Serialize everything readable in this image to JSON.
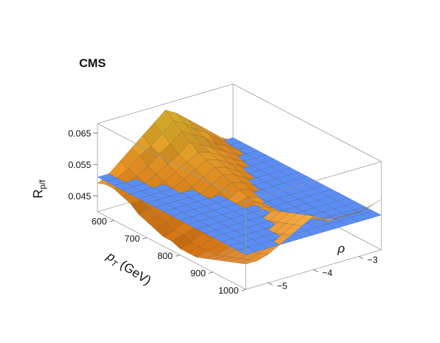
{
  "chart_data": {
    "type": "surface3d",
    "experiment_label": "CMS",
    "x_axis": {
      "title_main": "p",
      "title_sub": "T",
      "title_rest": " (GeV)",
      "range": [
        550,
        1000
      ],
      "ticks": [
        "600",
        "700",
        "800",
        "900",
        "1000"
      ],
      "tick_values": [
        600,
        700,
        800,
        900,
        1000
      ]
    },
    "y_axis": {
      "title": "ρ",
      "range": [
        -5.5,
        -2.5
      ],
      "ticks": [
        "−5",
        "−4",
        "−3"
      ],
      "tick_values": [
        -5,
        -4,
        -3
      ]
    },
    "z_axis": {
      "title_main": "R",
      "title_sub": "p/f",
      "range": [
        0.04,
        0.068
      ],
      "ticks": [
        "0.045",
        "0.055",
        "0.065"
      ],
      "tick_values": [
        0.045,
        0.055,
        0.065
      ]
    },
    "surfaces": [
      {
        "kind": "fitted-function",
        "color_low": "#cc6a10",
        "color_mid": "#f29a26",
        "color_high": "#ffe23a",
        "x_grid": [
          550,
          575,
          600,
          625,
          650,
          675,
          700,
          725,
          750,
          775,
          800,
          825,
          850,
          875,
          900,
          925,
          950,
          975,
          1000
        ],
        "y_grid": [
          -5.5,
          -5.25,
          -5.0,
          -4.75,
          -4.5,
          -4.25,
          -4.0,
          -3.75,
          -3.5,
          -3.25,
          -3.0,
          -2.75,
          -2.5
        ],
        "z_values": [
          [
            0.049,
            0.051,
            0.054,
            0.057,
            0.06,
            0.063,
            0.066,
            0.064,
            0.061,
            0.058,
            0.055,
            0.052,
            0.05
          ],
          [
            0.05,
            0.051,
            0.053,
            0.056,
            0.058,
            0.061,
            0.064,
            0.062,
            0.059,
            0.057,
            0.054,
            0.051,
            0.05
          ],
          [
            0.05,
            0.05,
            0.052,
            0.054,
            0.057,
            0.059,
            0.062,
            0.06,
            0.058,
            0.055,
            0.053,
            0.051,
            0.049
          ],
          [
            0.049,
            0.049,
            0.051,
            0.053,
            0.055,
            0.057,
            0.06,
            0.058,
            0.056,
            0.054,
            0.052,
            0.05,
            0.048
          ],
          [
            0.048,
            0.048,
            0.05,
            0.052,
            0.054,
            0.056,
            0.058,
            0.057,
            0.055,
            0.053,
            0.051,
            0.049,
            0.047
          ],
          [
            0.046,
            0.047,
            0.049,
            0.051,
            0.053,
            0.055,
            0.057,
            0.056,
            0.054,
            0.052,
            0.05,
            0.048,
            0.046
          ],
          [
            0.045,
            0.046,
            0.048,
            0.05,
            0.052,
            0.054,
            0.056,
            0.055,
            0.053,
            0.051,
            0.049,
            0.047,
            0.045
          ],
          [
            0.044,
            0.045,
            0.047,
            0.049,
            0.051,
            0.053,
            0.055,
            0.054,
            0.052,
            0.05,
            0.048,
            0.046,
            0.044
          ],
          [
            0.043,
            0.044,
            0.046,
            0.048,
            0.05,
            0.052,
            0.054,
            0.053,
            0.051,
            0.049,
            0.047,
            0.045,
            0.043
          ],
          [
            0.043,
            0.044,
            0.045,
            0.047,
            0.049,
            0.051,
            0.053,
            0.052,
            0.05,
            0.048,
            0.046,
            0.045,
            0.043
          ],
          [
            0.042,
            0.043,
            0.045,
            0.047,
            0.049,
            0.051,
            0.052,
            0.051,
            0.049,
            0.047,
            0.046,
            0.044,
            0.043
          ],
          [
            0.042,
            0.043,
            0.044,
            0.046,
            0.048,
            0.05,
            0.052,
            0.05,
            0.049,
            0.047,
            0.045,
            0.044,
            0.043
          ],
          [
            0.042,
            0.043,
            0.044,
            0.046,
            0.048,
            0.05,
            0.052,
            0.05,
            0.048,
            0.047,
            0.045,
            0.044,
            0.043
          ],
          [
            0.043,
            0.043,
            0.044,
            0.046,
            0.048,
            0.05,
            0.052,
            0.05,
            0.049,
            0.047,
            0.046,
            0.045,
            0.044
          ],
          [
            0.044,
            0.044,
            0.045,
            0.047,
            0.049,
            0.051,
            0.053,
            0.051,
            0.049,
            0.048,
            0.047,
            0.046,
            0.046
          ],
          [
            0.045,
            0.045,
            0.046,
            0.048,
            0.05,
            0.052,
            0.054,
            0.052,
            0.05,
            0.049,
            0.048,
            0.048,
            0.048
          ],
          [
            0.046,
            0.046,
            0.047,
            0.049,
            0.051,
            0.053,
            0.055,
            0.053,
            0.051,
            0.05,
            0.05,
            0.05,
            0.05
          ],
          [
            0.047,
            0.047,
            0.048,
            0.05,
            0.052,
            0.054,
            0.056,
            0.054,
            0.052,
            0.052,
            0.052,
            0.052,
            0.053
          ],
          [
            0.048,
            0.048,
            0.049,
            0.051,
            0.053,
            0.055,
            0.057,
            0.055,
            0.054,
            0.054,
            0.054,
            0.055,
            0.056
          ]
        ]
      },
      {
        "kind": "constant-plane",
        "color": "#5b8ef5",
        "z_value": 0.051
      }
    ],
    "box": true,
    "grid": false
  }
}
